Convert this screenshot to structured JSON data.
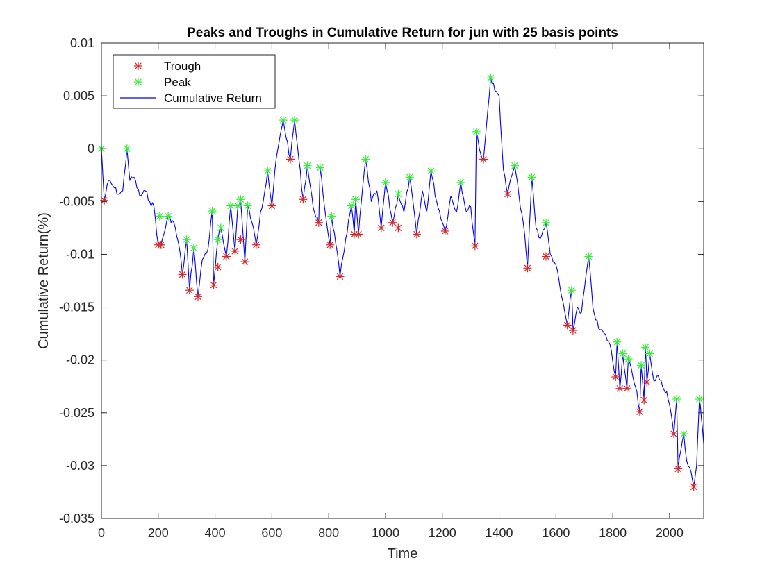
{
  "chart_data": {
    "type": "line",
    "title": "Peaks and Troughs in Cumulative Return for jun with 25 basis points",
    "xlabel": "Time",
    "ylabel": "Cumulative Return(%)",
    "xlim": [
      0,
      2120
    ],
    "ylim": [
      -0.035,
      0.01
    ],
    "xticks": [
      0,
      200,
      400,
      600,
      800,
      1000,
      1200,
      1400,
      1600,
      1800,
      2000
    ],
    "xtick_labels": [
      "0",
      "200",
      "400",
      "600",
      "800",
      "1000",
      "1200",
      "1400",
      "1600",
      "1800",
      "2000"
    ],
    "yticks": [
      0.01,
      0.005,
      0,
      -0.005,
      -0.01,
      -0.015,
      -0.02,
      -0.025,
      -0.03,
      -0.035
    ],
    "ytick_labels": [
      "0.01",
      "0.005",
      "0",
      "-0.005",
      "-0.01",
      "-0.015",
      "-0.02",
      "-0.025",
      "-0.03",
      "-0.035"
    ],
    "grid": false,
    "legend_position": "top-left",
    "series": [
      {
        "name": "Trough",
        "type": "scatter",
        "color": "#d62728",
        "marker": "asterisk",
        "x": [
          10,
          200,
          210,
          285,
          310,
          340,
          395,
          410,
          440,
          470,
          490,
          505,
          545,
          600,
          665,
          710,
          765,
          805,
          840,
          890,
          905,
          985,
          1025,
          1045,
          1110,
          1210,
          1315,
          1345,
          1430,
          1500,
          1565,
          1640,
          1660,
          1810,
          1825,
          1850,
          1895,
          1910,
          1920,
          2015,
          2030,
          2085
        ],
        "y": [
          -0.0049,
          -0.0091,
          -0.0091,
          -0.0119,
          -0.0134,
          -0.014,
          -0.0129,
          -0.0112,
          -0.0102,
          -0.0097,
          -0.0086,
          -0.0107,
          -0.0091,
          -0.0054,
          -0.001,
          -0.0048,
          -0.007,
          -0.0091,
          -0.0121,
          -0.0081,
          -0.0081,
          -0.0075,
          -0.007,
          -0.0075,
          -0.0081,
          -0.0078,
          -0.0092,
          -0.001,
          -0.0043,
          -0.0113,
          -0.0102,
          -0.0167,
          -0.0172,
          -0.0216,
          -0.0227,
          -0.0227,
          -0.0249,
          -0.0238,
          -0.0221,
          -0.027,
          -0.0303,
          -0.032
        ]
      },
      {
        "name": "Peak",
        "type": "scatter",
        "color": "#33ee33",
        "marker": "asterisk",
        "x": [
          0,
          90,
          205,
          235,
          300,
          325,
          390,
          410,
          420,
          455,
          480,
          490,
          515,
          585,
          640,
          680,
          725,
          770,
          810,
          880,
          895,
          930,
          1000,
          1045,
          1085,
          1160,
          1265,
          1320,
          1370,
          1455,
          1515,
          1565,
          1715,
          1655,
          1815,
          1835,
          1855,
          1900,
          1915,
          1930,
          2025,
          2050,
          2105
        ],
        "y": [
          0.0,
          0.0,
          -0.0064,
          -0.0064,
          -0.0086,
          -0.0094,
          -0.0059,
          -0.0086,
          -0.0075,
          -0.0054,
          -0.0054,
          -0.0048,
          -0.0054,
          -0.0021,
          0.0027,
          0.0027,
          -0.0016,
          -0.0018,
          -0.0064,
          -0.0054,
          -0.0048,
          -0.001,
          -0.0032,
          -0.0043,
          -0.0027,
          -0.0021,
          -0.0032,
          0.0016,
          0.0067,
          -0.0016,
          -0.0027,
          -0.007,
          -0.0102,
          -0.0134,
          -0.0183,
          -0.0194,
          -0.0199,
          -0.0205,
          -0.0188,
          -0.0194,
          -0.0237,
          -0.027,
          -0.0237
        ]
      },
      {
        "name": "Cumulative Return",
        "type": "line",
        "color": "#0000ee",
        "x": [
          0,
          10,
          25,
          40,
          60,
          75,
          90,
          100,
          115,
          135,
          155,
          170,
          185,
          200,
          210,
          235,
          255,
          275,
          285,
          300,
          310,
          325,
          340,
          355,
          375,
          390,
          395,
          410,
          420,
          440,
          455,
          470,
          480,
          490,
          505,
          515,
          530,
          545,
          560,
          575,
          585,
          600,
          615,
          640,
          665,
          680,
          695,
          710,
          725,
          745,
          765,
          770,
          790,
          805,
          810,
          825,
          840,
          860,
          880,
          890,
          895,
          905,
          915,
          930,
          950,
          970,
          985,
          1000,
          1025,
          1045,
          1065,
          1085,
          1110,
          1130,
          1145,
          1160,
          1180,
          1210,
          1230,
          1250,
          1265,
          1285,
          1300,
          1315,
          1320,
          1335,
          1345,
          1355,
          1370,
          1385,
          1400,
          1415,
          1430,
          1445,
          1455,
          1470,
          1485,
          1500,
          1515,
          1530,
          1545,
          1565,
          1580,
          1600,
          1620,
          1640,
          1655,
          1660,
          1675,
          1690,
          1715,
          1730,
          1750,
          1770,
          1790,
          1810,
          1815,
          1825,
          1835,
          1850,
          1855,
          1870,
          1885,
          1895,
          1900,
          1910,
          1915,
          1920,
          1930,
          1945,
          1960,
          1975,
          1990,
          2005,
          2015,
          2025,
          2030,
          2040,
          2050,
          2060,
          2075,
          2085,
          2095,
          2105,
          2112,
          2120
        ],
        "y": [
          0.0,
          -0.0049,
          -0.003,
          -0.0035,
          -0.0043,
          -0.004,
          0.0,
          -0.003,
          -0.0027,
          -0.0045,
          -0.004,
          -0.005,
          -0.0055,
          -0.0091,
          -0.0091,
          -0.0064,
          -0.007,
          -0.0095,
          -0.0119,
          -0.0086,
          -0.0134,
          -0.0094,
          -0.014,
          -0.0105,
          -0.0095,
          -0.0059,
          -0.0129,
          -0.0086,
          -0.0075,
          -0.0102,
          -0.0054,
          -0.0097,
          -0.0054,
          -0.0048,
          -0.0107,
          -0.0054,
          -0.007,
          -0.0091,
          -0.006,
          -0.004,
          -0.0021,
          -0.0054,
          -0.001,
          0.0027,
          -0.001,
          0.0027,
          -0.001,
          -0.0048,
          -0.0016,
          -0.0055,
          -0.007,
          -0.0018,
          -0.0065,
          -0.0091,
          -0.0064,
          -0.009,
          -0.0121,
          -0.0085,
          -0.0054,
          -0.0081,
          -0.0048,
          -0.0081,
          -0.005,
          -0.001,
          -0.005,
          -0.004,
          -0.0075,
          -0.0032,
          -0.007,
          -0.0043,
          -0.006,
          -0.0027,
          -0.0081,
          -0.004,
          -0.006,
          -0.0021,
          -0.005,
          -0.0078,
          -0.0045,
          -0.006,
          -0.0032,
          -0.006,
          -0.0055,
          -0.0092,
          0.0016,
          -0.0005,
          -0.001,
          0.002,
          0.0067,
          0.0055,
          0.005,
          -0.002,
          -0.0043,
          -0.0025,
          -0.0016,
          -0.0045,
          -0.007,
          -0.0113,
          -0.0027,
          -0.0075,
          -0.0085,
          -0.007,
          -0.01,
          -0.011,
          -0.014,
          -0.0167,
          -0.0134,
          -0.0172,
          -0.015,
          -0.0155,
          -0.0102,
          -0.015,
          -0.017,
          -0.0175,
          -0.0185,
          -0.0216,
          -0.0183,
          -0.0227,
          -0.0194,
          -0.0227,
          -0.0199,
          -0.0215,
          -0.023,
          -0.0249,
          -0.0205,
          -0.0238,
          -0.0188,
          -0.0221,
          -0.0194,
          -0.022,
          -0.0215,
          -0.0225,
          -0.023,
          -0.025,
          -0.027,
          -0.0237,
          -0.0303,
          -0.0285,
          -0.027,
          -0.0295,
          -0.0305,
          -0.032,
          -0.03,
          -0.0237,
          -0.0255,
          -0.028
        ]
      }
    ]
  }
}
